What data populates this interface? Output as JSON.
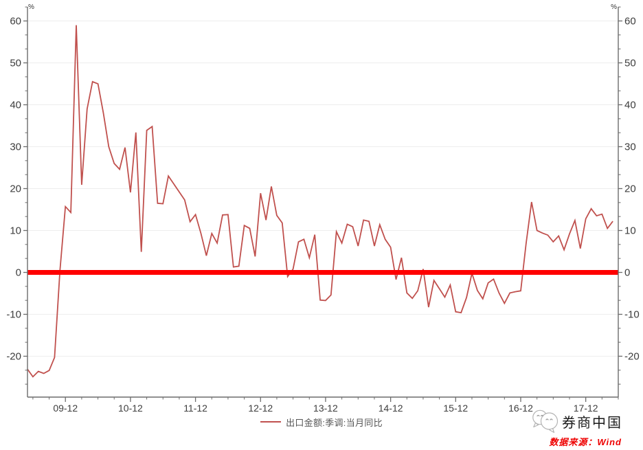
{
  "chart_data": {
    "type": "line",
    "title": "",
    "unit_label_left": "%",
    "unit_label_right": "%",
    "x_start": "2009-05",
    "x_freq": "monthly",
    "x_tick_labels": [
      {
        "label": "09-12",
        "month_index": 7
      },
      {
        "label": "10-12",
        "month_index": 19
      },
      {
        "label": "11-12",
        "month_index": 31
      },
      {
        "label": "12-12",
        "month_index": 43
      },
      {
        "label": "13-12",
        "month_index": 55
      },
      {
        "label": "14-12",
        "month_index": 67
      },
      {
        "label": "15-12",
        "month_index": 79
      },
      {
        "label": "16-12",
        "month_index": 91
      },
      {
        "label": "17-12",
        "month_index": 103
      }
    ],
    "x_minor_tick_every_months": 3,
    "x_total_months": 109,
    "ylim": [
      -29.8,
      63.4
    ],
    "yticks": [
      60,
      50,
      40,
      30,
      20,
      10,
      0,
      -10,
      -20
    ],
    "y_minor_divisions_per_major": 3,
    "grid": true,
    "legend_position": "bottom-center",
    "zero_line": {
      "value": 0,
      "color": "#ff0000",
      "width": 7
    },
    "series": [
      {
        "name": "出口金额:季调:当月同比",
        "color": "#c0504d",
        "values": [
          -23.1,
          -24.9,
          -23.6,
          -24.1,
          -23.4,
          -20.3,
          0.5,
          15.7,
          14.3,
          59,
          20.9,
          39,
          45.5,
          45,
          38,
          30,
          26,
          24.6,
          29.8,
          19.1,
          33.4,
          4.9,
          33.9,
          34.8,
          16.5,
          16.4,
          23,
          21.1,
          19.2,
          17.3,
          12.1,
          13.8,
          9.3,
          4,
          9.3,
          7,
          13.7,
          13.8,
          1.3,
          1.5,
          11.2,
          10.5,
          3.8,
          18.9,
          12.5,
          20.5,
          13.6,
          11.8,
          -1,
          0.8,
          7.3,
          7.9,
          3.5,
          9,
          -6.6,
          -6.7,
          -5.4,
          9.7,
          7,
          11.5,
          10.9,
          6.3,
          12.5,
          12.2,
          6.3,
          11.4,
          7.9,
          6,
          -1.7,
          3.5,
          -4.9,
          -6.2,
          -4.4,
          0.8,
          -8.3,
          -1.9,
          -3.9,
          -5.9,
          -3,
          -9.4,
          -9.6,
          -6,
          -0.2,
          -4.3,
          -6.3,
          -2.5,
          -1.6,
          -4.9,
          -7.4,
          -4.9,
          -4.6,
          -4.4,
          7,
          16.8,
          10,
          9.4,
          8.9,
          7.3,
          8.7,
          5.4,
          9.2,
          12.4,
          5.7,
          12.8,
          15.2,
          13.5,
          13.9,
          10.5,
          12.2
        ]
      }
    ]
  },
  "legend": {
    "label": "出口金额:季调:当月同比",
    "swatch_color": "#c0504d"
  },
  "brand": {
    "name": "券商中国",
    "icon": "chat-bubbles-icon"
  },
  "source": {
    "text": "数据来源：Wind",
    "color": "#ee0000"
  },
  "colors": {
    "series": "#c0504d",
    "zero_line": "#ff0000",
    "grid": "#ededed",
    "axis": "#6b6b6b",
    "tick_label": "#3d3d3d",
    "unit_label": "#333333"
  }
}
